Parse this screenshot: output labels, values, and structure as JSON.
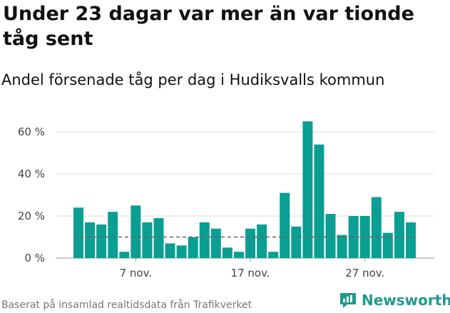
{
  "title": "Under 23 dagar var mer än var tionde tåg sent",
  "subtitle": "Andel försenade tåg per dag i Hudiksvalls kommun",
  "footer": "Baserat på insamlad realtidsdata från Trafikverket",
  "brand": {
    "name": "Newsworthy",
    "icon": "newsworthy-logo-icon",
    "color": "#1f9a8c"
  },
  "colors": {
    "bar": "#0a9f92",
    "threshold": "#666666",
    "grid": "#dddddd"
  },
  "chart_data": {
    "type": "bar",
    "xlabel": "",
    "ylabel": "",
    "ylim": [
      0,
      60
    ],
    "yticks": [
      0,
      20,
      40,
      60
    ],
    "ytick_labels": [
      "0 %",
      "20 %",
      "40 %",
      "60 %"
    ],
    "xtick_labels": [
      {
        "label": "7 nov.",
        "index": 5
      },
      {
        "label": "17 nov.",
        "index": 15
      },
      {
        "label": "27 nov.",
        "index": 25
      }
    ],
    "threshold": 10,
    "values": [
      24,
      17,
      16,
      22,
      3,
      25,
      17,
      19,
      7,
      6,
      10,
      17,
      14,
      5,
      3,
      14,
      16,
      3,
      31,
      15,
      65,
      54,
      21,
      11,
      20,
      20,
      29,
      12,
      22,
      17
    ]
  }
}
